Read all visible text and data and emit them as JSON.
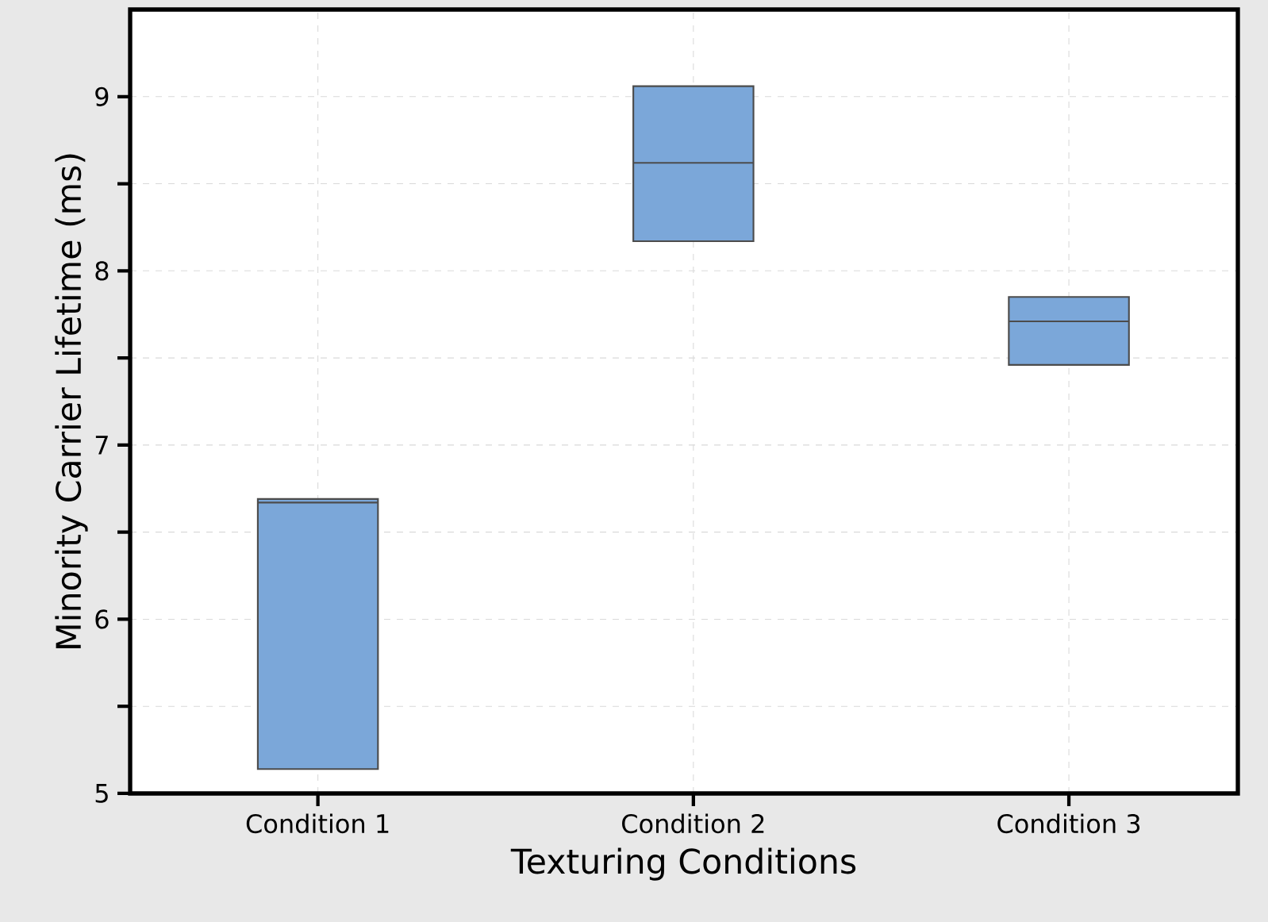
{
  "chart_data": {
    "type": "box",
    "xlabel": "Texturing Conditions",
    "ylabel": "Minority Carrier Lifetime (ms)",
    "categories": [
      "Condition 1",
      "Condition 2",
      "Condition 3"
    ],
    "boxes": [
      {
        "low": 5.14,
        "q1": 5.14,
        "median": 6.67,
        "q3": 6.69,
        "high": 6.69
      },
      {
        "low": 8.17,
        "q1": 8.17,
        "median": 8.62,
        "q3": 9.06,
        "high": 9.06
      },
      {
        "low": 7.46,
        "q1": 7.46,
        "median": 7.71,
        "q3": 7.85,
        "high": 7.85
      }
    ],
    "color": "#7ba7d9",
    "ylim": [
      5,
      9.5
    ],
    "yticks": [
      5,
      {
        "value": 5.5,
        "label": null
      },
      6,
      {
        "value": 6.5,
        "label": null
      },
      7,
      {
        "value": 7.5,
        "label": null
      },
      8,
      {
        "value": 8.5,
        "label": null
      },
      9
    ],
    "grid": true
  }
}
